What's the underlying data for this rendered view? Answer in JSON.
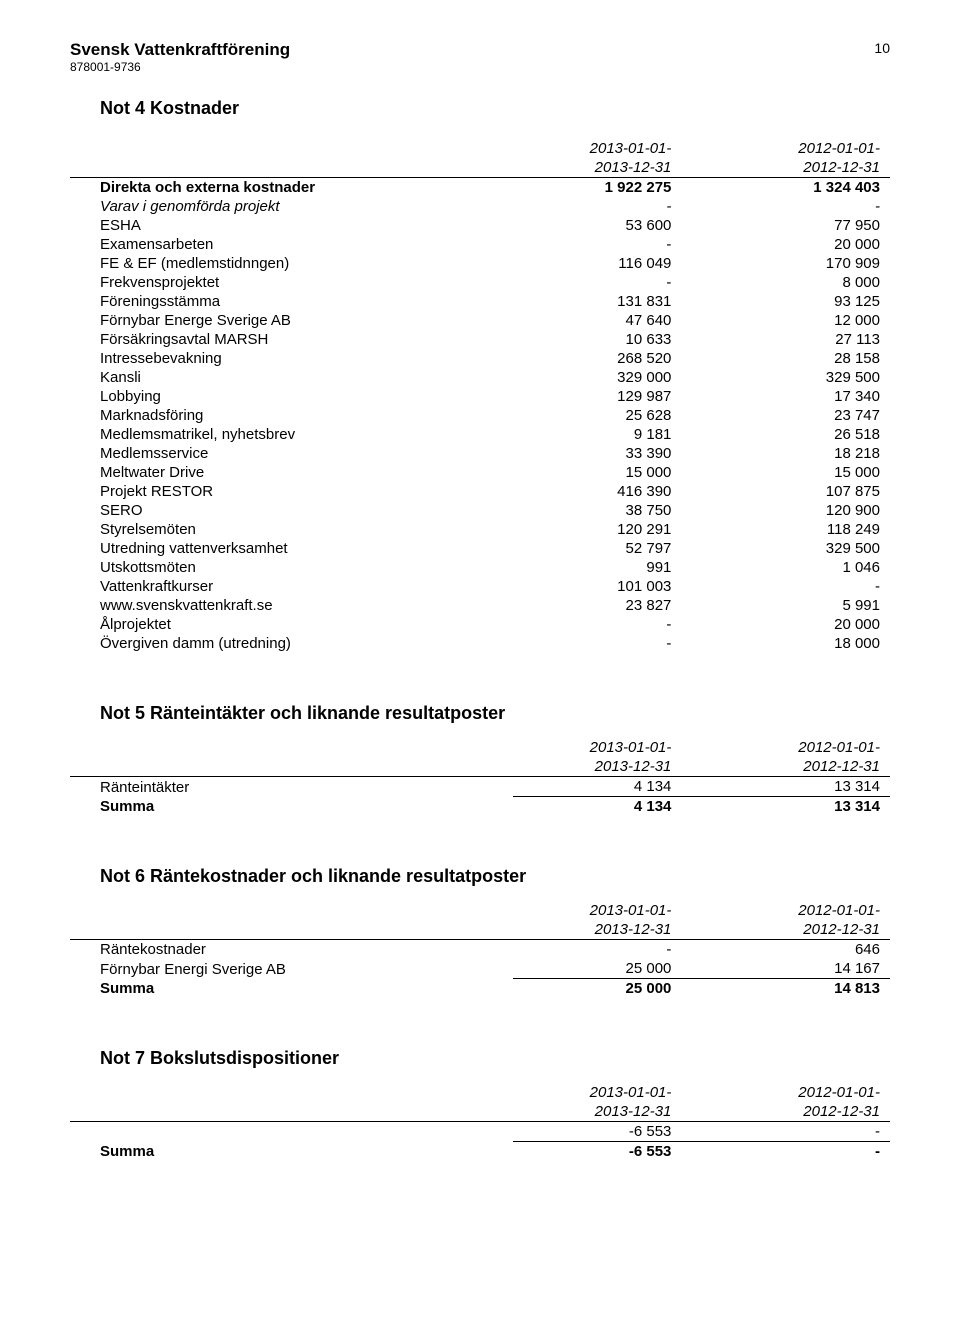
{
  "header": {
    "org_name": "Svensk Vattenkraftförening",
    "org_id": "878001-9736",
    "page_number": "10"
  },
  "period_headers": {
    "c1_line1": "2013-01-01-",
    "c1_line2": "2013-12-31",
    "c2_line1": "2012-01-01-",
    "c2_line2": "2012-12-31"
  },
  "not4": {
    "title": "Not 4  Kostnader",
    "rows": [
      {
        "label": "Direkta och externa kostnader",
        "v1": "1 922 275",
        "v2": "1 324 403",
        "bold": true
      },
      {
        "label": "Varav i genomförda projekt",
        "v1": "-",
        "v2": "-",
        "italic": true
      },
      {
        "label": "ESHA",
        "v1": "53 600",
        "v2": "77 950"
      },
      {
        "label": "Examensarbeten",
        "v1": "-",
        "v2": "20 000"
      },
      {
        "label": "FE & EF (medlemstidnngen)",
        "v1": "116 049",
        "v2": "170 909"
      },
      {
        "label": "Frekvensprojektet",
        "v1": "-",
        "v2": "8 000"
      },
      {
        "label": "Föreningsstämma",
        "v1": "131 831",
        "v2": "93 125"
      },
      {
        "label": "Förnybar Energe Sverige AB",
        "v1": "47 640",
        "v2": "12 000"
      },
      {
        "label": "Försäkringsavtal MARSH",
        "v1": "10 633",
        "v2": "27 113"
      },
      {
        "label": "Intressebevakning",
        "v1": "268 520",
        "v2": "28 158"
      },
      {
        "label": "Kansli",
        "v1": "329 000",
        "v2": "329 500"
      },
      {
        "label": "Lobbying",
        "v1": "129 987",
        "v2": "17 340"
      },
      {
        "label": "Marknadsföring",
        "v1": "25 628",
        "v2": "23 747"
      },
      {
        "label": "Medlemsmatrikel, nyhetsbrev",
        "v1": "9 181",
        "v2": "26 518"
      },
      {
        "label": "Medlemsservice",
        "v1": "33 390",
        "v2": "18 218"
      },
      {
        "label": "Meltwater Drive",
        "v1": "15 000",
        "v2": "15 000"
      },
      {
        "label": "Projekt RESTOR",
        "v1": "416 390",
        "v2": "107 875"
      },
      {
        "label": "SERO",
        "v1": "38 750",
        "v2": "120 900"
      },
      {
        "label": "Styrelsemöten",
        "v1": "120 291",
        "v2": "118 249"
      },
      {
        "label": "Utredning vattenverksamhet",
        "v1": "52 797",
        "v2": "329 500"
      },
      {
        "label": "Utskottsmöten",
        "v1": "991",
        "v2": "1 046"
      },
      {
        "label": "Vattenkraftkurser",
        "v1": "101 003",
        "v2": "-"
      },
      {
        "label": "www.svenskvattenkraft.se",
        "v1": "23 827",
        "v2": "5 991"
      },
      {
        "label": "Ålprojektet",
        "v1": "-",
        "v2": "20 000"
      },
      {
        "label": "Övergiven damm (utredning)",
        "v1": "-",
        "v2": "18 000"
      }
    ]
  },
  "not5": {
    "title": "Not 5  Ränteintäkter och liknande resultatposter",
    "rows": [
      {
        "label": "Ränteintäkter",
        "v1": "4 134",
        "v2": "13 314"
      }
    ],
    "sum": {
      "label": "Summa",
      "v1": "4 134",
      "v2": "13 314"
    }
  },
  "not6": {
    "title": "Not 6  Räntekostnader och liknande resultatposter",
    "rows": [
      {
        "label": "Räntekostnader",
        "v1": "-",
        "v2": "646"
      },
      {
        "label": "Förnybar Energi Sverige AB",
        "v1": "25 000",
        "v2": "14 167"
      }
    ],
    "sum": {
      "label": "Summa",
      "v1": "25 000",
      "v2": "14 813"
    }
  },
  "not7": {
    "title": "Not 7  Bokslutsdispositioner",
    "rows": [
      {
        "label": "",
        "v1": "-6 553",
        "v2": "-"
      }
    ],
    "sum": {
      "label": "Summa",
      "v1": "-6 553",
      "v2": "-"
    }
  }
}
